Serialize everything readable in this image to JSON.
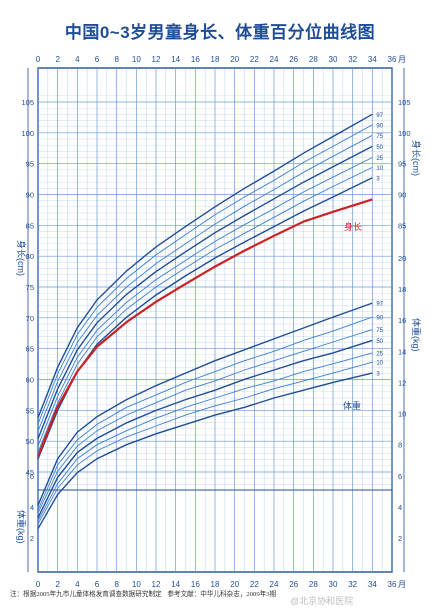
{
  "title": "中国0~3岁男童身长、体重百分位曲线图",
  "axis_unit_month": "月",
  "length_axis_label": "身长(cm)",
  "weight_axis_label": "体重(kg)",
  "length_curve_label": "身长",
  "weight_curve_label": "体重",
  "note": "注：根据2005年九市儿童体格发育调查数据研究制定",
  "reference": "参考文献：中华儿科杂志，2009年3期",
  "watermark": "@北京协和医院",
  "colors": {
    "accent": "#1f4e96",
    "grid": "#5a8fd6",
    "highlight": "#cc2222"
  },
  "chart_data": [
    {
      "type": "line",
      "title": "身长",
      "x_label": "月",
      "y_label": "身长(cm)",
      "x_ticks": [
        0,
        2,
        4,
        6,
        8,
        10,
        12,
        14,
        16,
        18,
        20,
        22,
        24,
        26,
        28,
        30,
        32,
        34,
        36
      ],
      "x_range": [
        0,
        36
      ],
      "y_ticks_left": [
        45,
        50,
        55,
        60,
        65,
        70,
        75,
        80,
        85,
        90,
        95,
        100,
        105
      ],
      "y_ticks_right": [
        85,
        90,
        95,
        100,
        105
      ],
      "y_range": [
        42,
        107
      ],
      "x": [
        0,
        2,
        4,
        6,
        9,
        12,
        15,
        18,
        21,
        24,
        27,
        30,
        34
      ],
      "series": [
        {
          "name": "97",
          "values": [
            53.8,
            62.0,
            68.4,
            72.9,
            77.6,
            81.5,
            84.8,
            88.0,
            91.0,
            93.8,
            96.7,
            99.4,
            103.0
          ]
        },
        {
          "name": "90",
          "values": [
            52.8,
            60.9,
            67.3,
            71.7,
            76.4,
            80.2,
            83.5,
            86.7,
            89.6,
            92.3,
            95.2,
            97.8,
            101.3
          ]
        },
        {
          "name": "75",
          "values": [
            51.6,
            59.7,
            66.0,
            70.4,
            75.0,
            78.8,
            82.0,
            85.2,
            88.1,
            90.8,
            93.6,
            96.2,
            99.6
          ]
        },
        {
          "name": "50",
          "values": [
            50.4,
            58.5,
            64.8,
            69.2,
            73.8,
            77.5,
            80.7,
            83.8,
            86.6,
            89.3,
            92.0,
            94.5,
            97.8
          ]
        },
        {
          "name": "25",
          "values": [
            49.2,
            57.3,
            63.6,
            68.0,
            72.5,
            76.2,
            79.3,
            82.4,
            85.1,
            87.7,
            90.4,
            92.8,
            96.0
          ]
        },
        {
          "name": "10",
          "values": [
            48.2,
            56.2,
            62.5,
            66.9,
            71.4,
            75.0,
            78.1,
            81.1,
            83.7,
            86.3,
            88.9,
            91.3,
            94.4
          ]
        },
        {
          "name": "3",
          "values": [
            47.1,
            55.0,
            61.3,
            65.7,
            70.1,
            73.7,
            76.8,
            79.7,
            82.3,
            84.8,
            87.3,
            89.6,
            92.7
          ]
        },
        {
          "name": "身长",
          "values": [
            47.5,
            55.6,
            61.3,
            65.3,
            69.3,
            72.6,
            75.5,
            78.3,
            80.9,
            83.3,
            85.6,
            87.2,
            89.2
          ]
        }
      ]
    },
    {
      "type": "line",
      "title": "体重",
      "x_label": "月",
      "y_label": "体重(kg)",
      "x_ticks": [
        0,
        2,
        4,
        6,
        8,
        10,
        12,
        14,
        16,
        18,
        20,
        22,
        24,
        26,
        28,
        30,
        32,
        34,
        36
      ],
      "x_range": [
        0,
        36
      ],
      "y_ticks_right": [
        2,
        4,
        6,
        8,
        10,
        12,
        14,
        16,
        18,
        20
      ],
      "y_ticks_left": [
        2,
        4,
        6
      ],
      "y_range": [
        1,
        21
      ],
      "x": [
        0,
        2,
        4,
        6,
        9,
        12,
        15,
        18,
        21,
        24,
        27,
        30,
        34
      ],
      "series": [
        {
          "name": "97",
          "values": [
            4.1,
            7.1,
            8.8,
            9.8,
            10.9,
            11.8,
            12.6,
            13.4,
            14.1,
            14.8,
            15.5,
            16.2,
            17.1
          ]
        },
        {
          "name": "90",
          "values": [
            3.8,
            6.7,
            8.3,
            9.3,
            10.4,
            11.2,
            12.0,
            12.7,
            13.4,
            14.0,
            14.7,
            15.3,
            16.2
          ]
        },
        {
          "name": "75",
          "values": [
            3.6,
            6.3,
            7.9,
            8.9,
            9.9,
            10.7,
            11.5,
            12.1,
            12.8,
            13.4,
            14.0,
            14.6,
            15.4
          ]
        },
        {
          "name": "50",
          "values": [
            3.3,
            5.9,
            7.5,
            8.4,
            9.4,
            10.2,
            10.9,
            11.5,
            12.2,
            12.8,
            13.4,
            13.9,
            14.7
          ]
        },
        {
          "name": "25",
          "values": [
            3.1,
            5.5,
            7.1,
            8.0,
            8.9,
            9.7,
            10.4,
            11.0,
            11.6,
            12.1,
            12.7,
            13.2,
            13.9
          ]
        },
        {
          "name": "10",
          "values": [
            2.9,
            5.2,
            6.7,
            7.6,
            8.5,
            9.2,
            9.9,
            10.5,
            11.0,
            11.6,
            12.1,
            12.6,
            13.3
          ]
        },
        {
          "name": "3",
          "values": [
            2.6,
            4.8,
            6.2,
            7.1,
            8.0,
            8.7,
            9.3,
            9.9,
            10.4,
            11.0,
            11.5,
            12.0,
            12.6
          ]
        }
      ]
    }
  ]
}
